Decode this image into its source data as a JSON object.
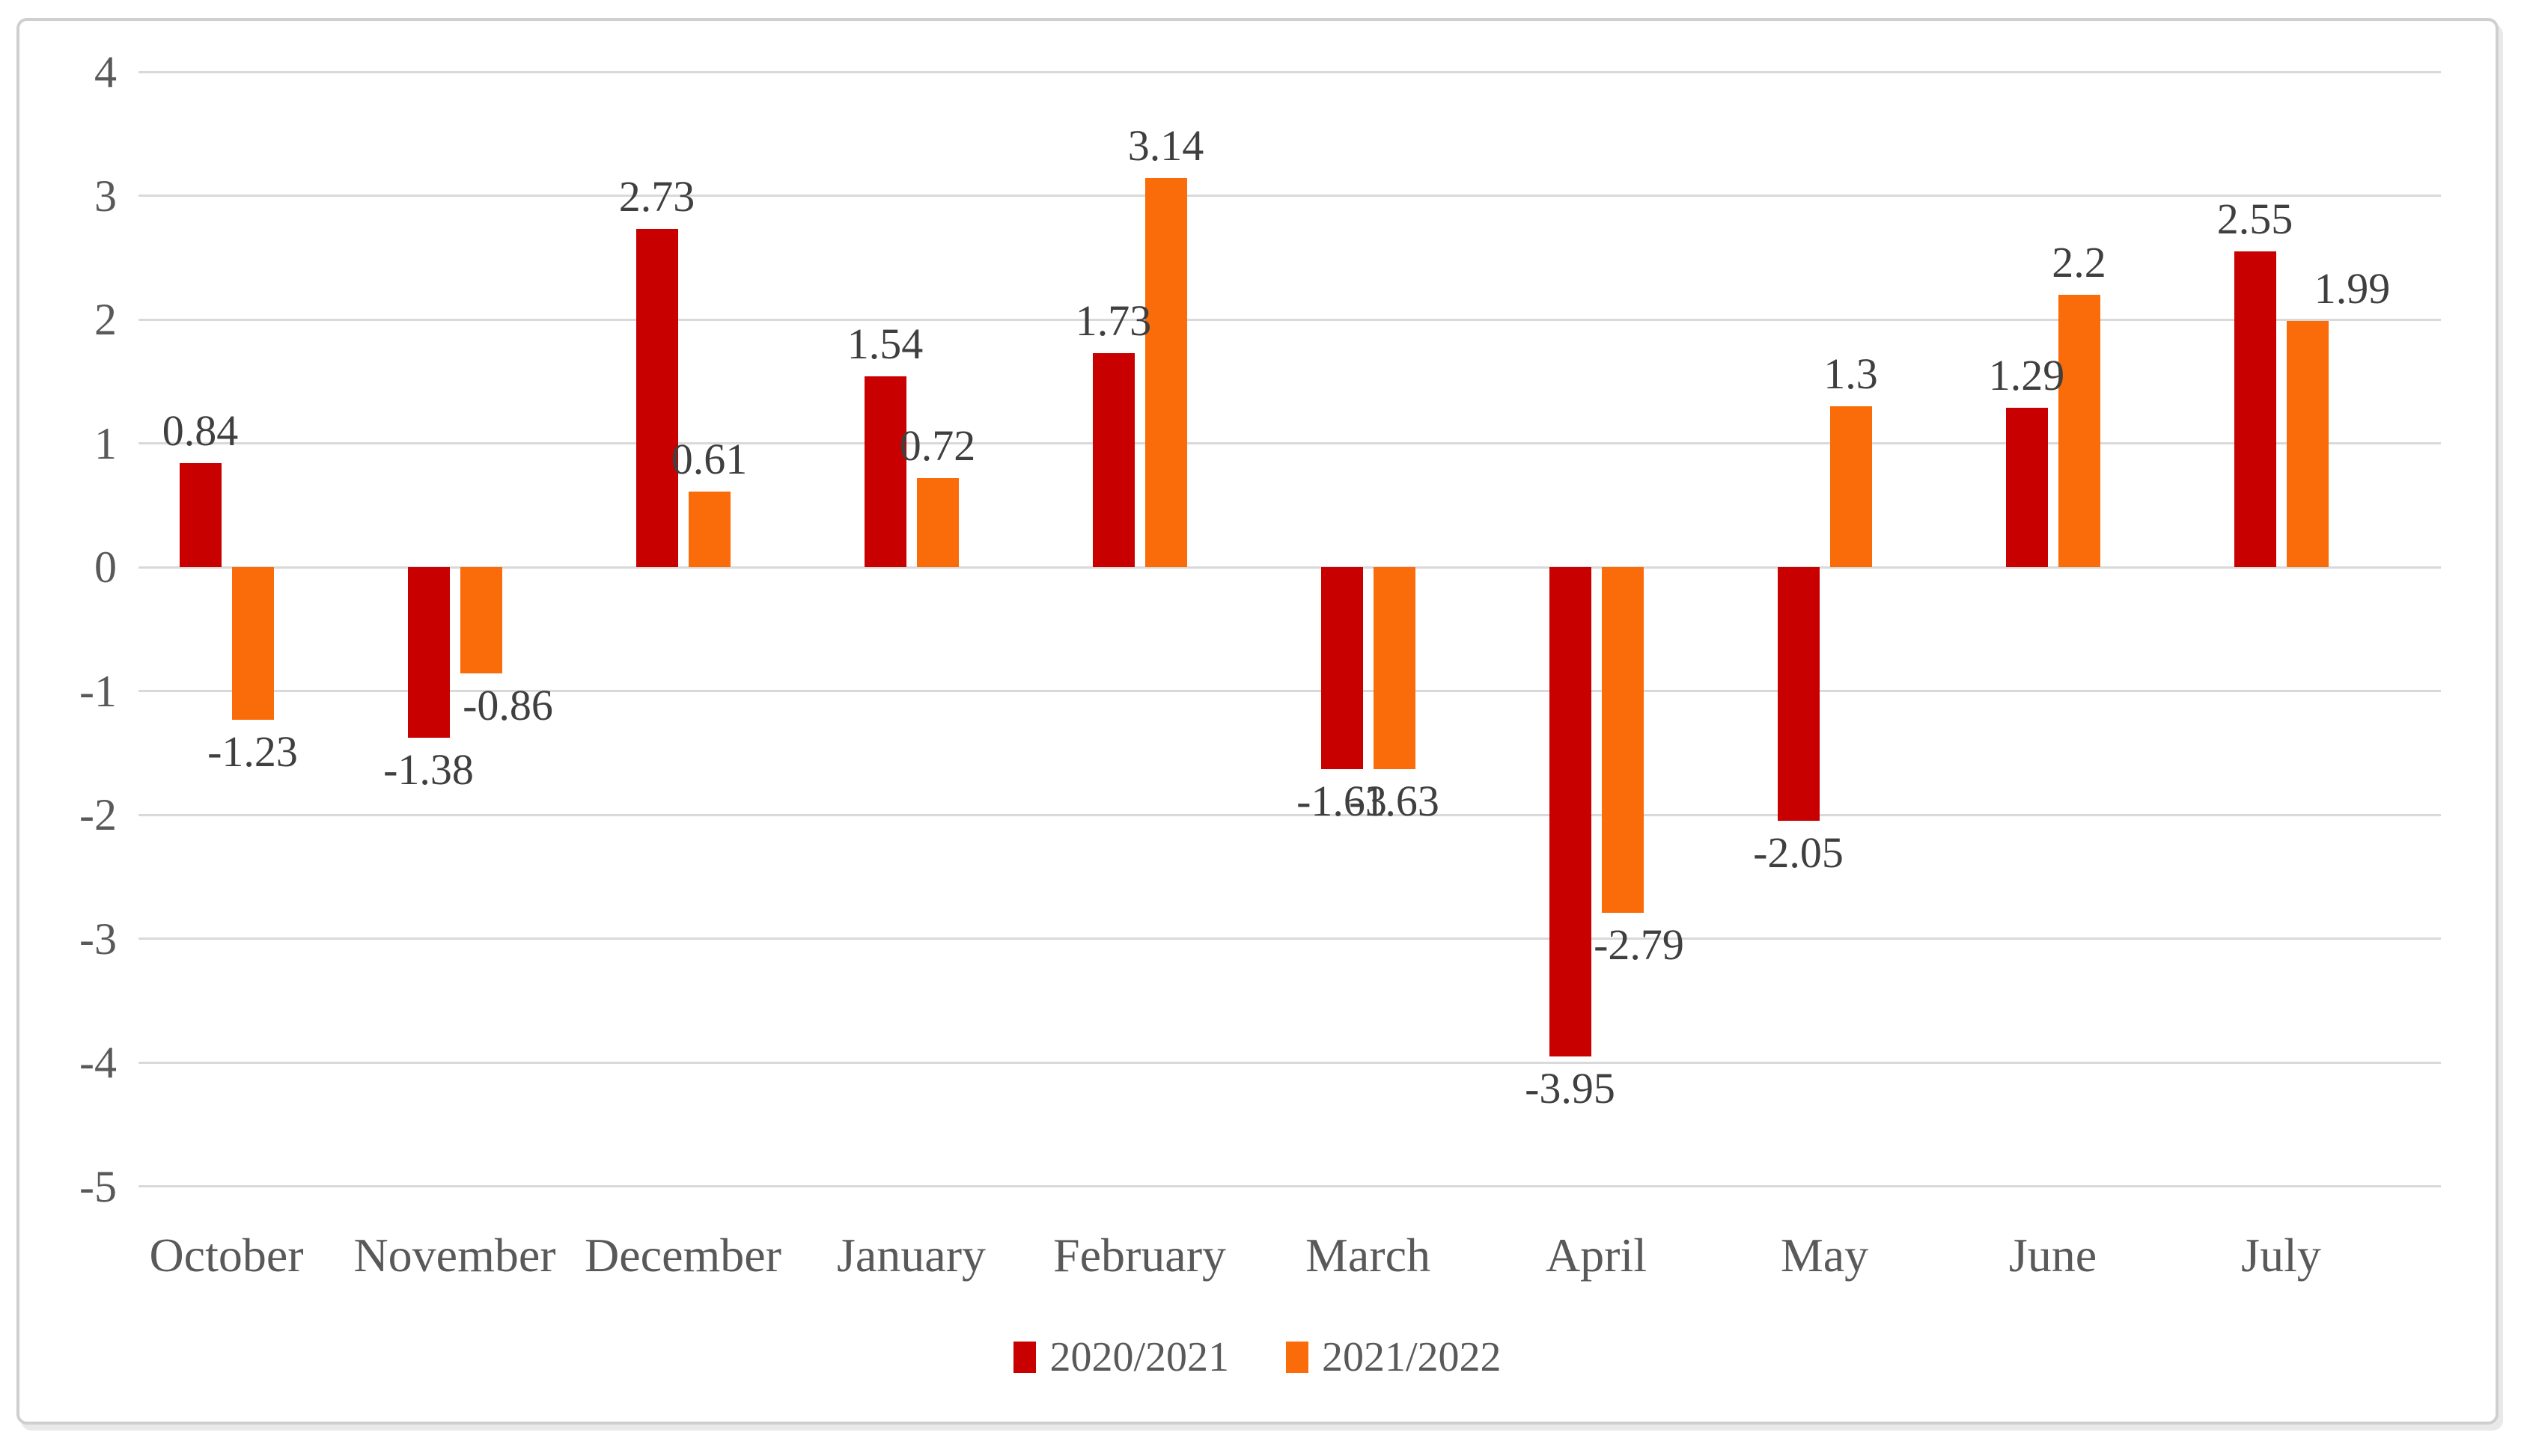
{
  "chart_data": {
    "type": "bar",
    "title": "",
    "categories": [
      "October",
      "November",
      "December",
      "January",
      "February",
      "March",
      "April",
      "May",
      "June",
      "July"
    ],
    "series": [
      {
        "name": "2020/2021",
        "color": "#c80000",
        "values": [
          0.84,
          -1.38,
          2.73,
          1.54,
          1.73,
          -1.63,
          -3.95,
          -2.05,
          1.29,
          2.55
        ],
        "labels": [
          "0.84",
          "-1.38",
          "2.73",
          "1.54",
          "1.73",
          "-1.63",
          "-3.95",
          "-2.05",
          "1.29",
          "2.55"
        ]
      },
      {
        "name": "2021/2022",
        "color": "#fa6b09",
        "values": [
          -1.23,
          -0.86,
          0.61,
          0.72,
          3.14,
          -1.63,
          -2.79,
          1.3,
          2.2,
          1.99
        ],
        "labels": [
          "-1.23",
          "-0.86",
          "0.61",
          "0.72",
          "3.14",
          "-1.63",
          "-2.79",
          "1.3",
          "2.2",
          "1.99"
        ]
      }
    ],
    "ylim": [
      -5,
      4
    ],
    "y_ticks": [
      4,
      3,
      2,
      1,
      0,
      -1,
      -2,
      -3,
      -4,
      -5
    ],
    "xlabel": "",
    "ylabel": "",
    "grid": true,
    "data_labels": "outside-end",
    "legend_position": "bottom",
    "colors": {
      "gridline": "#d9d9d9",
      "axis_text": "#595959",
      "data_label_text": "#3f3f3f",
      "legend_text": "#595959",
      "plot_background": "#ffffff",
      "frame_border": "#cfcfcf"
    },
    "layout_hints": {
      "label_dx": [
        [
          0,
          0,
          0,
          0,
          0,
          0,
          0,
          0,
          0,
          0
        ],
        [
          0,
          36,
          0,
          0,
          0,
          0,
          22,
          0,
          0,
          60
        ]
      ]
    }
  }
}
